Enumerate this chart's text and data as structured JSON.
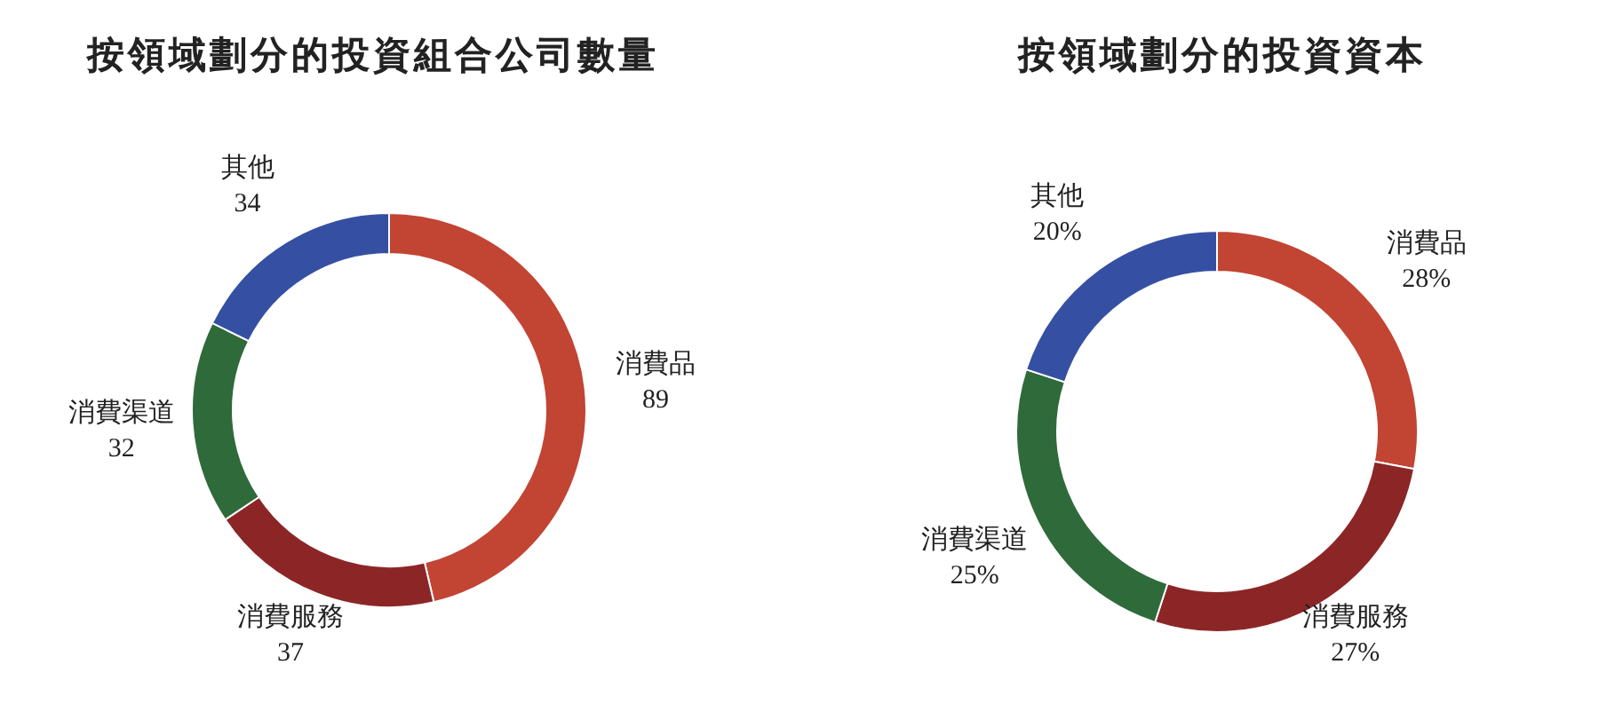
{
  "chart_data": [
    {
      "type": "donut",
      "title": "按領域劃分的投資組合公司數量",
      "categories": [
        "消費品",
        "消費服務",
        "消費渠道",
        "其他"
      ],
      "values": [
        89,
        37,
        32,
        34
      ],
      "colors": [
        "#c24433",
        "#8c2626",
        "#2f6a3a",
        "#3550a2"
      ],
      "value_labels": [
        "89",
        "37",
        "32",
        "34"
      ]
    },
    {
      "type": "donut",
      "title": "按領域劃分的投資資本",
      "categories": [
        "消費品",
        "消費服務",
        "消費渠道",
        "其他"
      ],
      "values": [
        28,
        27,
        25,
        20
      ],
      "colors": [
        "#c24433",
        "#8c2626",
        "#2f6a3a",
        "#3550a2"
      ],
      "value_labels": [
        "28%",
        "27%",
        "25%",
        "20%"
      ]
    }
  ]
}
